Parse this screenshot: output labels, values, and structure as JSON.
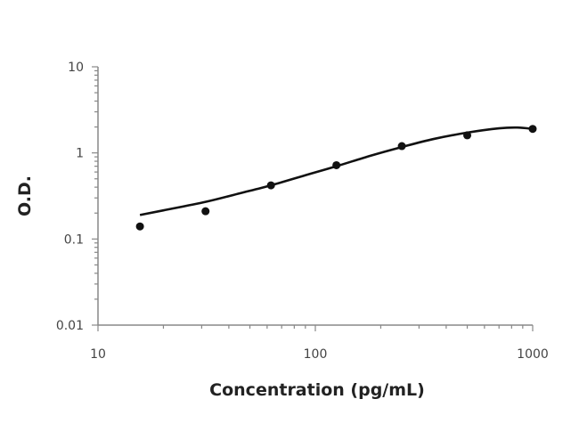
{
  "chart_data": {
    "type": "scatter",
    "title": "",
    "xlabel": "Concentration (pg/mL)",
    "ylabel": "O.D.",
    "xscale": "log",
    "yscale": "log",
    "xlim": [
      10,
      1000
    ],
    "ylim": [
      0.01,
      10
    ],
    "x_ticks": [
      "10",
      "100",
      "1000"
    ],
    "y_ticks": [
      "10",
      "1",
      "0.1",
      "0.01"
    ],
    "grid": false,
    "legend": "none",
    "colors": {
      "points": "#111111",
      "curve": "#111111",
      "axis": "#888888"
    },
    "series": [
      {
        "kind": "points",
        "x": [
          15.6,
          31.25,
          62.5,
          125,
          250,
          500,
          1000
        ],
        "y": [
          0.14,
          0.21,
          0.42,
          0.72,
          1.2,
          1.6,
          1.9
        ]
      },
      {
        "kind": "fit-curve",
        "x": [
          15.6,
          20,
          31.25,
          45,
          62.5,
          90,
          125,
          180,
          250,
          350,
          500,
          700,
          850,
          1000
        ],
        "y": [
          0.19,
          0.215,
          0.27,
          0.34,
          0.42,
          0.55,
          0.7,
          0.93,
          1.17,
          1.45,
          1.72,
          1.93,
          1.97,
          1.9
        ]
      }
    ]
  }
}
